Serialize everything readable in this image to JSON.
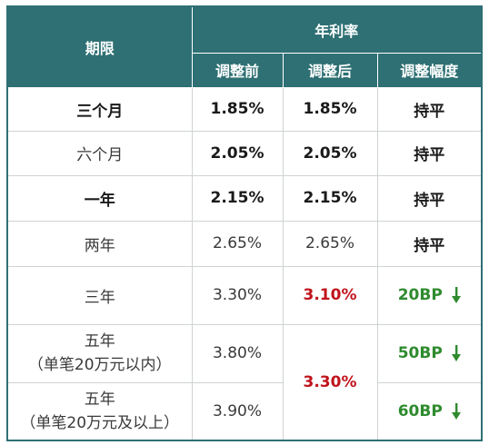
{
  "header": {
    "period": "期限",
    "annual_rate": "年利率",
    "before": "调整前",
    "after": "调整后",
    "change": "调整幅度"
  },
  "rows": [
    {
      "period": "三个月",
      "before": "1.85%",
      "after": "1.85%",
      "change": "持平"
    },
    {
      "period": "六个月",
      "before": "2.05%",
      "after": "2.05%",
      "change": "持平"
    },
    {
      "period": "一年",
      "before": "2.15%",
      "after": "2.15%",
      "change": "持平"
    },
    {
      "period": "两年",
      "before": "2.65%",
      "after": "2.65%",
      "change": "持平"
    },
    {
      "period": "三年",
      "before": "3.30%",
      "after": "3.10%",
      "change": "20BP"
    },
    {
      "period_line1": "五年",
      "period_line2": "（单笔20万元以内）",
      "before": "3.80%",
      "after": "3.30%",
      "change": "50BP"
    },
    {
      "period_line1": "五年",
      "period_line2": "（单笔20万元及以上）",
      "before": "3.90%",
      "change": "60BP"
    }
  ],
  "icons": {
    "down": "arrow-down-icon"
  },
  "colors": {
    "header_bg": "#2e7074",
    "decrease_red": "#c0141c",
    "change_green": "#2e8b2e"
  }
}
